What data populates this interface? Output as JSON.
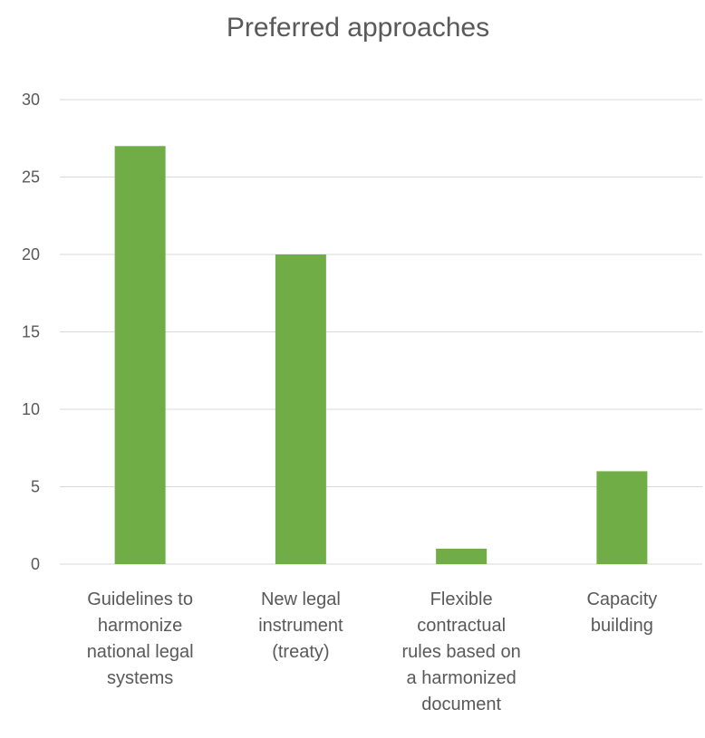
{
  "chart_data": {
    "type": "bar",
    "title": "Preferred approaches",
    "xlabel": "",
    "ylabel": "",
    "categories": [
      [
        "Guidelines to",
        "harmonize",
        "national legal",
        "systems"
      ],
      [
        "New legal",
        "instrument",
        "(treaty)"
      ],
      [
        "Flexible",
        "contractual",
        "rules based on",
        "a harmonized",
        "document"
      ],
      [
        "Capacity",
        "building"
      ]
    ],
    "values": [
      27,
      20,
      1,
      6
    ],
    "ylim": [
      0,
      30
    ],
    "yticks": [
      0,
      5,
      10,
      15,
      20,
      25,
      30
    ],
    "grid": true,
    "legend": "none",
    "bar_color": "#70AD47",
    "grid_color": "#D9D9D9"
  }
}
